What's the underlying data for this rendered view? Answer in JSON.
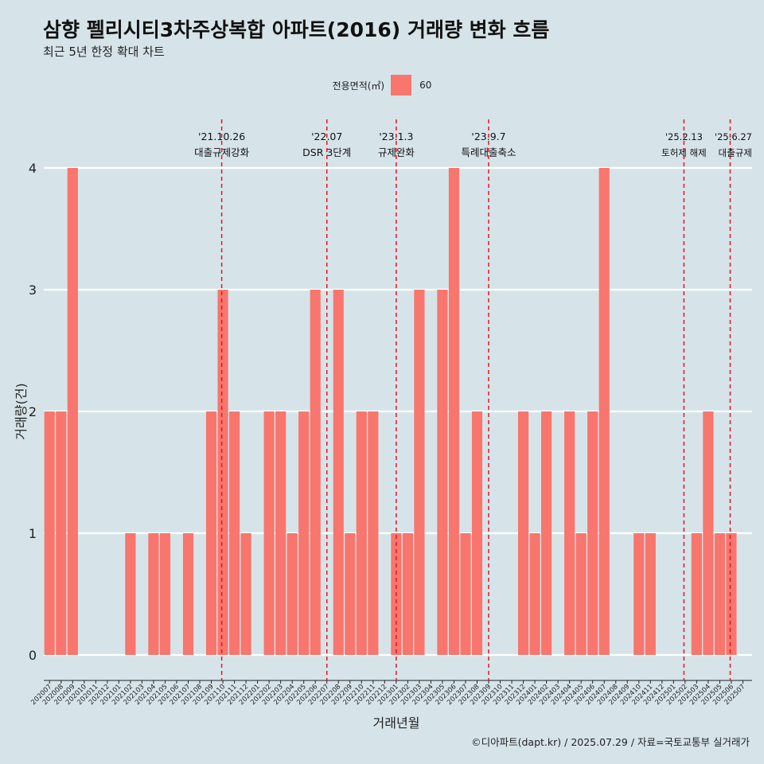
{
  "title": "삼향 펠리시티3차주상복합 아파트(2016) 거래량 변화 흐름",
  "subtitle": "최근 5년 한정 확대 차트",
  "caption": "©디아파트(dapt.kr) / 2025.07.29 / 자료=국토교통부 실거래가",
  "legend": {
    "title": "전용면적(㎡)",
    "label": "60",
    "color": "#f8766d"
  },
  "chart_data": {
    "type": "bar",
    "xlabel": "거래년월",
    "ylabel": "거래량(건)",
    "ylim": [
      0,
      4
    ],
    "yticks": [
      0,
      1,
      2,
      3,
      4
    ],
    "grid": true,
    "categories": [
      "202007",
      "202008",
      "202009",
      "202010",
      "202011",
      "202012",
      "202101",
      "202102",
      "202103",
      "202104",
      "202105",
      "202106",
      "202107",
      "202108",
      "202109",
      "202110",
      "202111",
      "202112",
      "202201",
      "202202",
      "202203",
      "202204",
      "202205",
      "202206",
      "202207",
      "202208",
      "202209",
      "202210",
      "202211",
      "202212",
      "202301",
      "202302",
      "202303",
      "202304",
      "202305",
      "202306",
      "202307",
      "202308",
      "202309",
      "202310",
      "202311",
      "202312",
      "202401",
      "202402",
      "202403",
      "202404",
      "202405",
      "202406",
      "202407",
      "202408",
      "202409",
      "202410",
      "202411",
      "202412",
      "202501",
      "202502",
      "202503",
      "202504",
      "202505",
      "202506",
      "202507"
    ],
    "series": [
      {
        "name": "60",
        "values": [
          2,
          2,
          4,
          0,
          0,
          0,
          0,
          1,
          0,
          1,
          1,
          0,
          1,
          0,
          2,
          3,
          2,
          1,
          0,
          2,
          2,
          1,
          2,
          3,
          0,
          3,
          1,
          2,
          2,
          0,
          1,
          1,
          3,
          0,
          3,
          4,
          1,
          2,
          0,
          0,
          0,
          2,
          1,
          2,
          0,
          2,
          1,
          2,
          4,
          0,
          0,
          1,
          1,
          0,
          0,
          0,
          1,
          2,
          1,
          1,
          0
        ]
      }
    ],
    "annotations": [
      {
        "position": 15.4,
        "date": "'21.10.26",
        "text": "대출규제강화"
      },
      {
        "position": 24.5,
        "date": "'22.07",
        "text": "DSR 3단계"
      },
      {
        "position": 30.5,
        "date": "'23.1.3",
        "text": "규제완화"
      },
      {
        "position": 38.5,
        "date": "'23.9.7",
        "text": "특례대출축소"
      },
      {
        "position": 55.4,
        "date": "'25.2.13",
        "text": "토허제 해제"
      },
      {
        "position": 59.4,
        "date": "'25.6.27",
        "text": "대출규제"
      }
    ]
  }
}
